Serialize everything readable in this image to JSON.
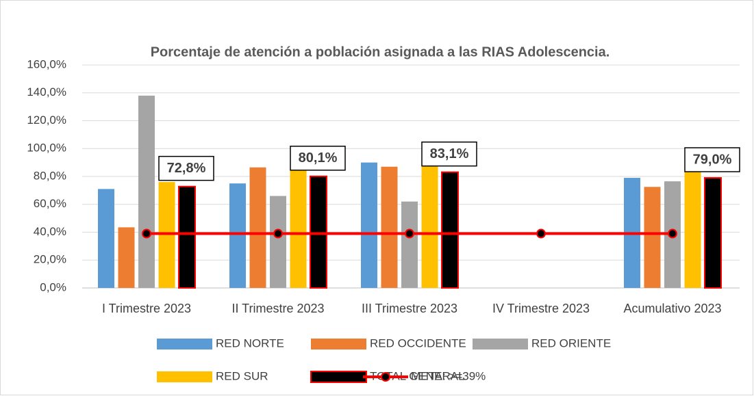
{
  "chart_data": {
    "type": "bar",
    "title": "Porcentaje de atención a población asignada a las RIAS Adolescencia.",
    "categories": [
      "I Trimestre 2023",
      "II Trimestre 2023",
      "III Trimestre 2023",
      "IV Trimestre 2023",
      "Acumulativo 2023"
    ],
    "series": [
      {
        "name": "RED NORTE",
        "color": "#5b9bd5",
        "values": [
          71,
          75,
          90,
          null,
          79
        ]
      },
      {
        "name": "RED OCCIDENTE",
        "color": "#ed7d31",
        "values": [
          43.5,
          86.5,
          87,
          null,
          72.5
        ]
      },
      {
        "name": "RED ORIENTE",
        "color": "#a5a5a5",
        "values": [
          138,
          66,
          62,
          null,
          76.5
        ]
      },
      {
        "name": "RED SUR",
        "color": "#ffc000",
        "values": [
          76,
          95,
          96,
          null,
          89
        ]
      },
      {
        "name": "TOTAL GENERAL",
        "color": "#000000",
        "border_color": "#ff0000",
        "values": [
          72.8,
          80.1,
          83.1,
          null,
          79.0
        ],
        "value_labels": [
          "72,8%",
          "80,1%",
          "83,1%",
          null,
          "79,0%"
        ]
      },
      {
        "name": "META: >=39%",
        "type": "line",
        "color": "#ff0000",
        "marker_color": "#000000",
        "values": [
          39,
          39,
          39,
          39,
          39
        ]
      }
    ],
    "ylim": [
      0,
      160
    ],
    "yticks": [
      {
        "value": 0,
        "label": "0,0%"
      },
      {
        "value": 20,
        "label": "20,0%"
      },
      {
        "value": 40,
        "label": "40,0%"
      },
      {
        "value": 60,
        "label": "60,0%"
      },
      {
        "value": 80,
        "label": "80,0%"
      },
      {
        "value": 100,
        "label": "100,0%"
      },
      {
        "value": 120,
        "label": "120,0%"
      },
      {
        "value": 140,
        "label": "140,0%"
      },
      {
        "value": 160,
        "label": "160,0%"
      }
    ],
    "grid": true,
    "legend": "bottom"
  }
}
